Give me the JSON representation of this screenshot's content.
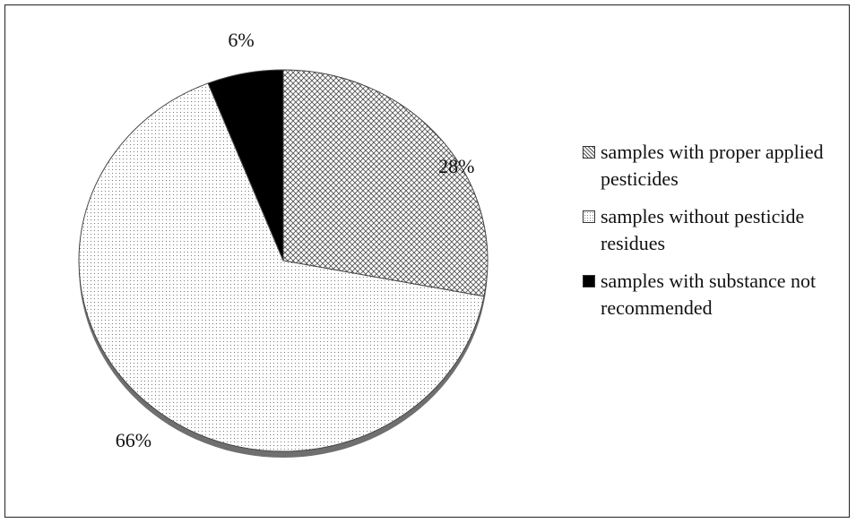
{
  "chart_data": {
    "type": "pie",
    "title": "",
    "slices": [
      {
        "label": "samples with proper applied pesticides",
        "value": 28,
        "display": "28%",
        "pattern": "crosshatch",
        "color": "#777777"
      },
      {
        "label": "samples without pesticide residues",
        "value": 66,
        "display": "66%",
        "pattern": "dots",
        "color": "#bbbbbb"
      },
      {
        "label": "samples with substance not recommended",
        "value": 6,
        "display": "6%",
        "pattern": "solid",
        "color": "#000000"
      }
    ],
    "legend_position": "right",
    "start_angle": "top, clockwise",
    "style": "3d-tilted"
  }
}
